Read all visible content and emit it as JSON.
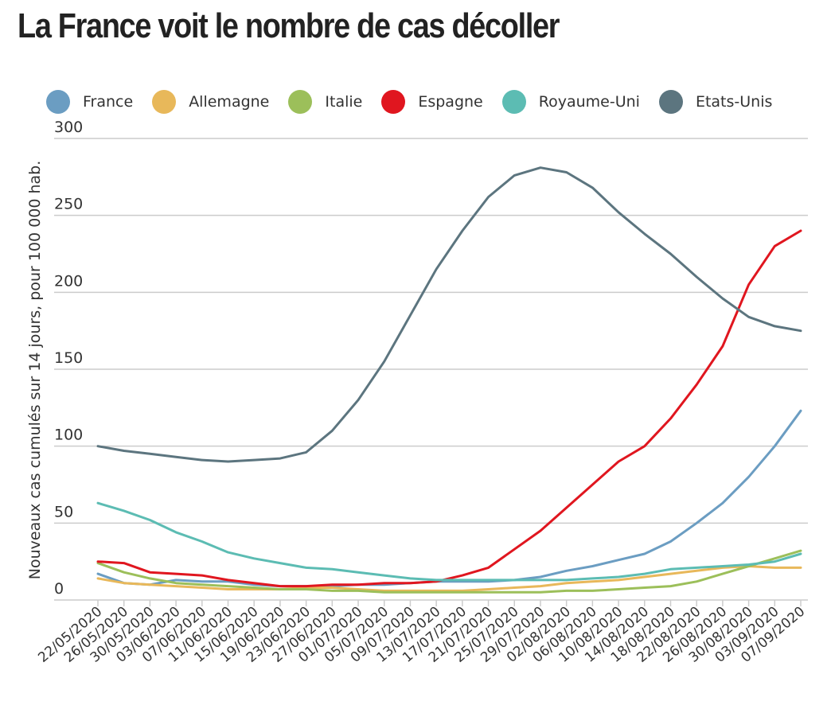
{
  "chart_data": {
    "type": "line",
    "title": "La France voit le nombre de cas décoller",
    "ylabel": "Nouveaux cas cumulés sur 14 jours, pour 100 000 hab.",
    "xlabel": "",
    "ylim": [
      0,
      300
    ],
    "yticks": [
      0,
      50,
      100,
      150,
      200,
      250,
      300
    ],
    "grid": true,
    "legend_position": "top",
    "x_tick_labels": [
      "22/05/2020",
      "26/05/2020",
      "30/05/2020",
      "03/06/2020",
      "07/06/2020",
      "11/06/2020",
      "15/06/2020",
      "19/06/2020",
      "23/06/2020",
      "27/06/2020",
      "01/07/2020",
      "05/07/2020",
      "09/07/2020",
      "13/07/2020",
      "17/07/2020",
      "21/07/2020",
      "25/07/2020",
      "29/07/2020",
      "02/08/2020",
      "06/08/2020",
      "10/08/2020",
      "14/08/2020",
      "18/08/2020",
      "22/08/2020",
      "26/08/2020",
      "30/08/2020",
      "03/09/2020",
      "07/09/2020"
    ],
    "x_dates_note": "",
    "series": [
      {
        "name": "France",
        "color": "#6b9dc2",
        "points": [
          [
            "22/05/2020",
            17
          ],
          [
            "26/05/2020",
            11
          ],
          [
            "30/05/2020",
            10
          ],
          [
            "03/06/2020",
            13
          ],
          [
            "07/06/2020",
            12
          ],
          [
            "11/06/2020",
            12
          ],
          [
            "15/06/2020",
            10
          ],
          [
            "19/06/2020",
            9
          ],
          [
            "23/06/2020",
            9
          ],
          [
            "27/06/2020",
            9
          ],
          [
            "01/07/2020",
            10
          ],
          [
            "05/07/2020",
            10
          ],
          [
            "09/07/2020",
            11
          ],
          [
            "13/07/2020",
            12
          ],
          [
            "17/07/2020",
            12
          ],
          [
            "21/07/2020",
            12
          ],
          [
            "25/07/2020",
            13
          ],
          [
            "29/07/2020",
            15
          ],
          [
            "02/08/2020",
            19
          ],
          [
            "06/08/2020",
            22
          ],
          [
            "10/08/2020",
            26
          ],
          [
            "14/08/2020",
            30
          ],
          [
            "18/08/2020",
            38
          ],
          [
            "22/08/2020",
            50
          ],
          [
            "26/08/2020",
            63
          ],
          [
            "30/08/2020",
            80
          ],
          [
            "03/09/2020",
            100
          ],
          [
            "07/09/2020",
            123
          ]
        ]
      },
      {
        "name": "Allemagne",
        "color": "#e8b85a",
        "points": [
          [
            "22/05/2020",
            14
          ],
          [
            "26/05/2020",
            11
          ],
          [
            "30/05/2020",
            10
          ],
          [
            "03/06/2020",
            9
          ],
          [
            "07/06/2020",
            8
          ],
          [
            "11/06/2020",
            7
          ],
          [
            "15/06/2020",
            7
          ],
          [
            "19/06/2020",
            7
          ],
          [
            "23/06/2020",
            8
          ],
          [
            "27/06/2020",
            8
          ],
          [
            "01/07/2020",
            7
          ],
          [
            "05/07/2020",
            6
          ],
          [
            "09/07/2020",
            6
          ],
          [
            "13/07/2020",
            6
          ],
          [
            "17/07/2020",
            6
          ],
          [
            "21/07/2020",
            7
          ],
          [
            "25/07/2020",
            8
          ],
          [
            "29/07/2020",
            9
          ],
          [
            "02/08/2020",
            11
          ],
          [
            "06/08/2020",
            12
          ],
          [
            "10/08/2020",
            13
          ],
          [
            "14/08/2020",
            15
          ],
          [
            "18/08/2020",
            17
          ],
          [
            "22/08/2020",
            19
          ],
          [
            "26/08/2020",
            21
          ],
          [
            "30/08/2020",
            22
          ],
          [
            "03/09/2020",
            21
          ],
          [
            "07/09/2020",
            21
          ]
        ]
      },
      {
        "name": "Italie",
        "color": "#9cbf5a",
        "points": [
          [
            "22/05/2020",
            24
          ],
          [
            "26/05/2020",
            18
          ],
          [
            "30/05/2020",
            14
          ],
          [
            "03/06/2020",
            11
          ],
          [
            "07/06/2020",
            10
          ],
          [
            "11/06/2020",
            9
          ],
          [
            "15/06/2020",
            8
          ],
          [
            "19/06/2020",
            7
          ],
          [
            "23/06/2020",
            7
          ],
          [
            "27/06/2020",
            6
          ],
          [
            "01/07/2020",
            6
          ],
          [
            "05/07/2020",
            5
          ],
          [
            "09/07/2020",
            5
          ],
          [
            "13/07/2020",
            5
          ],
          [
            "17/07/2020",
            5
          ],
          [
            "21/07/2020",
            5
          ],
          [
            "25/07/2020",
            5
          ],
          [
            "29/07/2020",
            5
          ],
          [
            "02/08/2020",
            6
          ],
          [
            "06/08/2020",
            6
          ],
          [
            "10/08/2020",
            7
          ],
          [
            "14/08/2020",
            8
          ],
          [
            "18/08/2020",
            9
          ],
          [
            "22/08/2020",
            12
          ],
          [
            "26/08/2020",
            17
          ],
          [
            "30/08/2020",
            22
          ],
          [
            "03/09/2020",
            27
          ],
          [
            "07/09/2020",
            32
          ]
        ]
      },
      {
        "name": "Espagne",
        "color": "#e0161f",
        "points": [
          [
            "22/05/2020",
            25
          ],
          [
            "26/05/2020",
            24
          ],
          [
            "30/05/2020",
            18
          ],
          [
            "03/06/2020",
            17
          ],
          [
            "07/06/2020",
            16
          ],
          [
            "11/06/2020",
            13
          ],
          [
            "15/06/2020",
            11
          ],
          [
            "19/06/2020",
            9
          ],
          [
            "23/06/2020",
            9
          ],
          [
            "27/06/2020",
            10
          ],
          [
            "01/07/2020",
            10
          ],
          [
            "05/07/2020",
            11
          ],
          [
            "09/07/2020",
            11
          ],
          [
            "13/07/2020",
            12
          ],
          [
            "17/07/2020",
            16
          ],
          [
            "21/07/2020",
            21
          ],
          [
            "25/07/2020",
            33
          ],
          [
            "29/07/2020",
            45
          ],
          [
            "02/08/2020",
            60
          ],
          [
            "06/08/2020",
            75
          ],
          [
            "10/08/2020",
            90
          ],
          [
            "14/08/2020",
            100
          ],
          [
            "18/08/2020",
            118
          ],
          [
            "22/08/2020",
            140
          ],
          [
            "26/08/2020",
            165
          ],
          [
            "30/08/2020",
            205
          ],
          [
            "03/09/2020",
            230
          ],
          [
            "07/09/2020",
            240
          ]
        ]
      },
      {
        "name": "Royaume-Uni",
        "color": "#5cbcb3",
        "points": [
          [
            "22/05/2020",
            63
          ],
          [
            "26/05/2020",
            58
          ],
          [
            "30/05/2020",
            52
          ],
          [
            "03/06/2020",
            44
          ],
          [
            "07/06/2020",
            38
          ],
          [
            "11/06/2020",
            31
          ],
          [
            "15/06/2020",
            27
          ],
          [
            "19/06/2020",
            24
          ],
          [
            "23/06/2020",
            21
          ],
          [
            "27/06/2020",
            20
          ],
          [
            "01/07/2020",
            18
          ],
          [
            "05/07/2020",
            16
          ],
          [
            "09/07/2020",
            14
          ],
          [
            "13/07/2020",
            13
          ],
          [
            "17/07/2020",
            13
          ],
          [
            "21/07/2020",
            13
          ],
          [
            "25/07/2020",
            13
          ],
          [
            "29/07/2020",
            13
          ],
          [
            "02/08/2020",
            13
          ],
          [
            "06/08/2020",
            14
          ],
          [
            "10/08/2020",
            15
          ],
          [
            "14/08/2020",
            17
          ],
          [
            "18/08/2020",
            20
          ],
          [
            "22/08/2020",
            21
          ],
          [
            "26/08/2020",
            22
          ],
          [
            "30/08/2020",
            23
          ],
          [
            "03/09/2020",
            25
          ],
          [
            "07/09/2020",
            30
          ]
        ]
      },
      {
        "name": "Etats-Unis",
        "color": "#5c757f",
        "points": [
          [
            "22/05/2020",
            100
          ],
          [
            "26/05/2020",
            97
          ],
          [
            "30/05/2020",
            95
          ],
          [
            "03/06/2020",
            93
          ],
          [
            "07/06/2020",
            91
          ],
          [
            "11/06/2020",
            90
          ],
          [
            "15/06/2020",
            91
          ],
          [
            "19/06/2020",
            92
          ],
          [
            "23/06/2020",
            96
          ],
          [
            "27/06/2020",
            110
          ],
          [
            "01/07/2020",
            130
          ],
          [
            "05/07/2020",
            155
          ],
          [
            "09/07/2020",
            185
          ],
          [
            "13/07/2020",
            215
          ],
          [
            "17/07/2020",
            240
          ],
          [
            "21/07/2020",
            262
          ],
          [
            "25/07/2020",
            276
          ],
          [
            "29/07/2020",
            281
          ],
          [
            "02/08/2020",
            278
          ],
          [
            "06/08/2020",
            268
          ],
          [
            "10/08/2020",
            252
          ],
          [
            "14/08/2020",
            238
          ],
          [
            "18/08/2020",
            225
          ],
          [
            "22/08/2020",
            210
          ],
          [
            "26/08/2020",
            196
          ],
          [
            "30/08/2020",
            184
          ],
          [
            "03/09/2020",
            178
          ],
          [
            "07/09/2020",
            175
          ]
        ]
      }
    ]
  }
}
